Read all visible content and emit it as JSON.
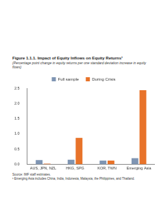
{
  "chart_data": {
    "type": "bar",
    "title": "Figure 1.1.1. Impact of Equity Inflows on Equity Returns¹",
    "subtitle": "(Percentage point change in equity returns per one standard deviation increase in equity flows)",
    "source": "Source: IMF staff estimates.",
    "note": "¹ Emerging Asia includes China, India, Indonesia, Malaysia, the Philippines, and Thailand.",
    "categories": [
      "AUS, JPN, NZL",
      "HKG, SPG",
      "KOR, TWN",
      "Emerging Asia"
    ],
    "series": [
      {
        "name": "Full sample",
        "color": "#7f95b3",
        "values": [
          0.14,
          0.15,
          0.12,
          0.2
        ]
      },
      {
        "name": "During Crisis",
        "color": "#e8732a",
        "values": [
          0.02,
          0.87,
          0.12,
          2.43
        ]
      }
    ],
    "ylim": [
      0,
      2.5
    ],
    "yticks": [
      {
        "value": 0,
        "label": "0.0"
      },
      {
        "value": 0.5,
        "label": "0.5"
      },
      {
        "value": 1,
        "label": "1.0"
      },
      {
        "value": 1.5,
        "label": "1.5"
      },
      {
        "value": 2,
        "label": "2.0"
      },
      {
        "value": 2.5,
        "label": "2.5"
      }
    ],
    "grid": false,
    "legend": "top"
  }
}
